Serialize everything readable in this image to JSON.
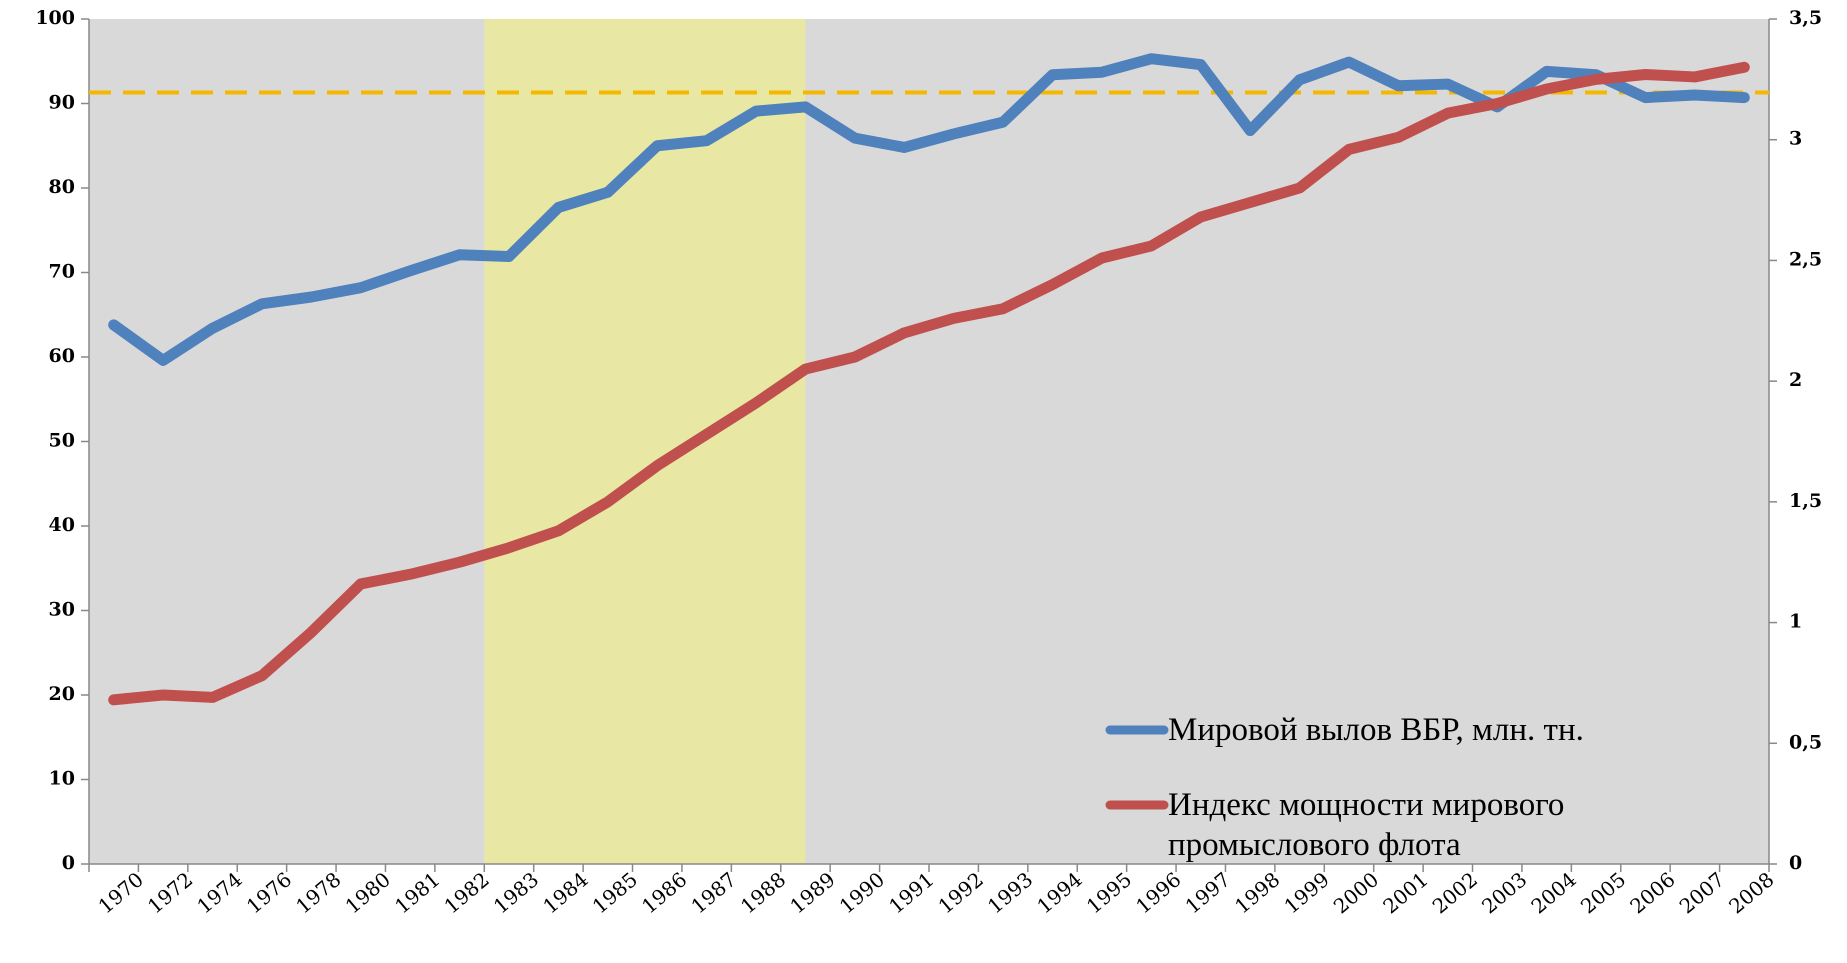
{
  "chart_data": {
    "type": "line",
    "categories": [
      "1970",
      "1972",
      "1974",
      "1976",
      "1978",
      "1980",
      "1981",
      "1982",
      "1983",
      "1984",
      "1985",
      "1986",
      "1987",
      "1988",
      "1989",
      "1990",
      "1991",
      "1992",
      "1993",
      "1994",
      "1995",
      "1996",
      "1997",
      "1998",
      "1999",
      "2000",
      "2001",
      "2002",
      "2003",
      "2004",
      "2005",
      "2006",
      "2007",
      "2008"
    ],
    "series": [
      {
        "name": "Мировой вылов ВБР, млн. тн.",
        "color": "#4f81bd",
        "values": [
          63.8,
          59.6,
          63.4,
          66.3,
          67.1,
          68.2,
          70.2,
          72.1,
          71.9,
          77.7,
          79.5,
          85.0,
          85.6,
          89.1,
          89.6,
          85.9,
          84.8,
          86.4,
          87.8,
          93.4,
          93.7,
          95.3,
          94.6,
          86.8,
          92.8,
          94.9,
          92.1,
          92.3,
          89.6,
          93.8,
          93.4,
          90.7,
          91.0,
          90.7
        ]
      },
      {
        "name": "Индекс мощности мирового промыслового флота",
        "color": "#c0504d",
        "axis": "y2",
        "values": [
          0.68,
          0.7,
          0.69,
          0.78,
          0.96,
          1.16,
          1.2,
          1.25,
          1.31,
          1.38,
          1.5,
          1.65,
          1.78,
          1.91,
          2.05,
          2.1,
          2.2,
          2.26,
          2.3,
          2.4,
          2.51,
          2.56,
          2.68,
          2.74,
          2.8,
          2.96,
          3.01,
          3.11,
          3.15,
          3.21,
          3.25,
          3.27,
          3.26,
          3.3
        ]
      }
    ],
    "ylim": [
      0,
      100
    ],
    "yticks": [
      0,
      10,
      20,
      30,
      40,
      50,
      60,
      70,
      80,
      90,
      100
    ],
    "y2lim": [
      0,
      3.5
    ],
    "y2ticks": [
      0,
      {
        "value": 0.5,
        "label": "0,5"
      },
      1,
      {
        "value": 1.5,
        "label": "1,5"
      },
      2,
      {
        "value": 2.5,
        "label": "2,5"
      },
      3,
      {
        "value": 3.5,
        "label": "3,5"
      }
    ],
    "reference_line": {
      "value": 91.3,
      "color": "#f5b800"
    },
    "highlight": {
      "from": "1983",
      "to": "1989",
      "color": "#eaea9a"
    },
    "background": "#d9d9d9"
  }
}
